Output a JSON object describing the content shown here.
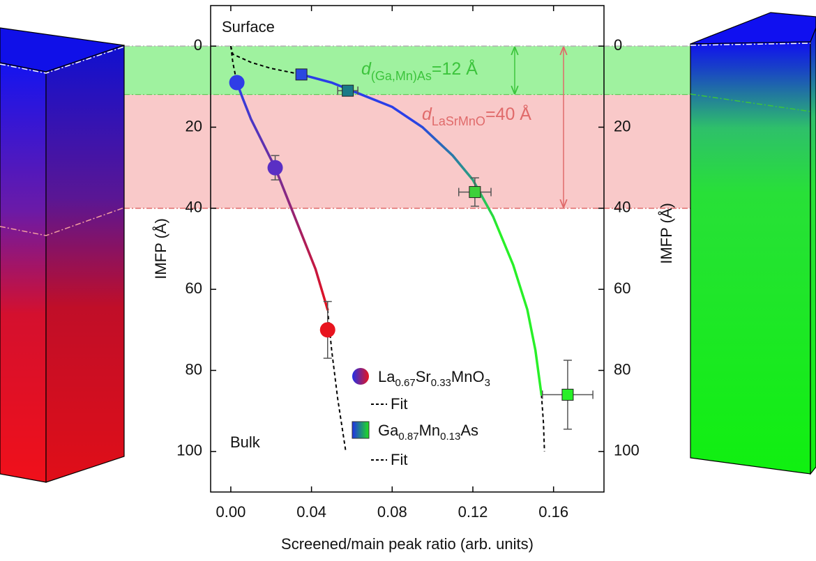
{
  "chart_data": {
    "type": "scatter",
    "xlabel": "Screened/main peak ratio (arb. units)",
    "ylabel": "IMFP (Å)",
    "y2label": "IMFP (Å)",
    "xlim": [
      -0.01,
      0.185
    ],
    "xticks": [
      {
        "value": 0,
        "label": "0.00"
      },
      0.04,
      0.08,
      0.12,
      0.16
    ],
    "ylim": [
      110,
      -10
    ],
    "yticks": [
      0,
      20,
      40,
      60,
      80,
      100
    ],
    "y2lim": [
      110,
      -10
    ],
    "y2ticks": [
      0,
      20,
      40,
      60,
      80,
      100
    ],
    "annotations": [
      "Surface",
      "Bulk"
    ],
    "bands": [
      {
        "range": [
          0,
          12
        ],
        "color": "#8ef08e",
        "line_color": "#3cc43c",
        "label": [
          "d",
          "(Ga,Mn)As",
          "=12 Å"
        ]
      },
      {
        "range": [
          12,
          40
        ],
        "color": "#f8c0c0",
        "line_color": "#e06a6a",
        "label": [
          "d",
          "LaSrMnO",
          "=40 Å"
        ]
      }
    ],
    "fit_label": "Fit",
    "series": [
      {
        "name": [
          "La",
          "0.67",
          "Sr",
          "0.33",
          "MnO",
          "3"
        ],
        "marker": "circle",
        "x": [
          0.003,
          0.022,
          0.048
        ],
        "y": [
          9,
          30,
          70
        ],
        "yerr": [
          null,
          3,
          7
        ],
        "xerr": [
          null,
          null,
          null
        ],
        "colors": [
          "#2f3de6",
          "#5a2fc4",
          "#e8141e"
        ],
        "fit_colors": [
          "#2a3ee8",
          "#e6101c"
        ],
        "fit_x": [
          0.003,
          0.006,
          0.01,
          0.014,
          0.018,
          0.022,
          0.026,
          0.03,
          0.034,
          0.038,
          0.042,
          0.045,
          0.048
        ],
        "fit_y": [
          9,
          13,
          18,
          22,
          26,
          30,
          35,
          40,
          45,
          50,
          55,
          60,
          65
        ],
        "dash_x": [
          [
            0,
            0.001,
            0.003
          ],
          [
            0.048,
            0.05,
            0.053,
            0.057
          ]
        ],
        "dash_y": [
          [
            0,
            4,
            9
          ],
          [
            65,
            75,
            87,
            100
          ]
        ]
      },
      {
        "name": [
          "Ga",
          "0.87",
          "Mn",
          "0.13",
          "As"
        ],
        "marker": "square",
        "x": [
          0.035,
          0.058,
          0.121,
          0.167
        ],
        "y": [
          7,
          11,
          36,
          86
        ],
        "yerr": [
          null,
          null,
          3.5,
          8.5
        ],
        "xerr": [
          null,
          0.005,
          0.008,
          0.0125
        ],
        "colors": [
          "#2a48e0",
          "#1a7a88",
          "#3ed03a",
          "#28f028"
        ],
        "fit_colors": [
          "#2a3ee8",
          "#28f028"
        ],
        "fit_x": [
          0.035,
          0.05,
          0.065,
          0.08,
          0.095,
          0.11,
          0.12,
          0.13,
          0.14,
          0.147,
          0.151,
          0.154
        ],
        "fit_y": [
          7,
          9,
          12,
          15,
          20,
          27,
          33,
          42,
          54,
          65,
          75,
          86
        ],
        "dash_x": [
          [
            0,
            0.001,
            0.01,
            0.02,
            0.035
          ],
          [
            0.154,
            0.155,
            0.1555
          ]
        ],
        "dash_y": [
          [
            0,
            2,
            4,
            5.5,
            7
          ],
          [
            86,
            93,
            100
          ]
        ]
      }
    ]
  }
}
